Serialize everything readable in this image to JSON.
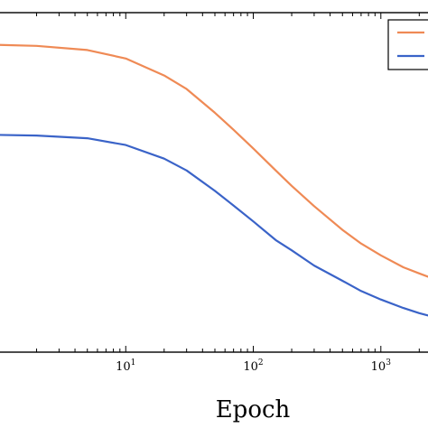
{
  "chart_data": {
    "type": "line",
    "xlabel": "Epoch",
    "xscale": "log",
    "xlim": [
      1,
      2500
    ],
    "ylim": [
      0,
      1
    ],
    "grid": false,
    "legend_position": "top-right",
    "x_ticks": [
      {
        "value": 10,
        "base": "10",
        "exp": "1"
      },
      {
        "value": 100,
        "base": "10",
        "exp": "2"
      },
      {
        "value": 1000,
        "base": "10",
        "exp": "3"
      }
    ],
    "series": [
      {
        "color": "#ef8a55",
        "x": [
          1,
          2,
          5,
          10,
          20,
          30,
          50,
          70,
          100,
          150,
          200,
          300,
          500,
          700,
          1000,
          1500,
          2000,
          2500
        ],
        "y": [
          0.905,
          0.902,
          0.89,
          0.865,
          0.815,
          0.775,
          0.705,
          0.655,
          0.6,
          0.535,
          0.49,
          0.43,
          0.36,
          0.32,
          0.285,
          0.25,
          0.232,
          0.218
        ]
      },
      {
        "color": "#3a63c8",
        "x": [
          1,
          2,
          5,
          10,
          20,
          30,
          50,
          70,
          100,
          150,
          200,
          300,
          500,
          700,
          1000,
          1500,
          2000,
          2500
        ],
        "y": [
          0.64,
          0.638,
          0.63,
          0.61,
          0.57,
          0.535,
          0.475,
          0.432,
          0.385,
          0.33,
          0.3,
          0.255,
          0.21,
          0.18,
          0.155,
          0.13,
          0.115,
          0.105
        ]
      }
    ]
  }
}
